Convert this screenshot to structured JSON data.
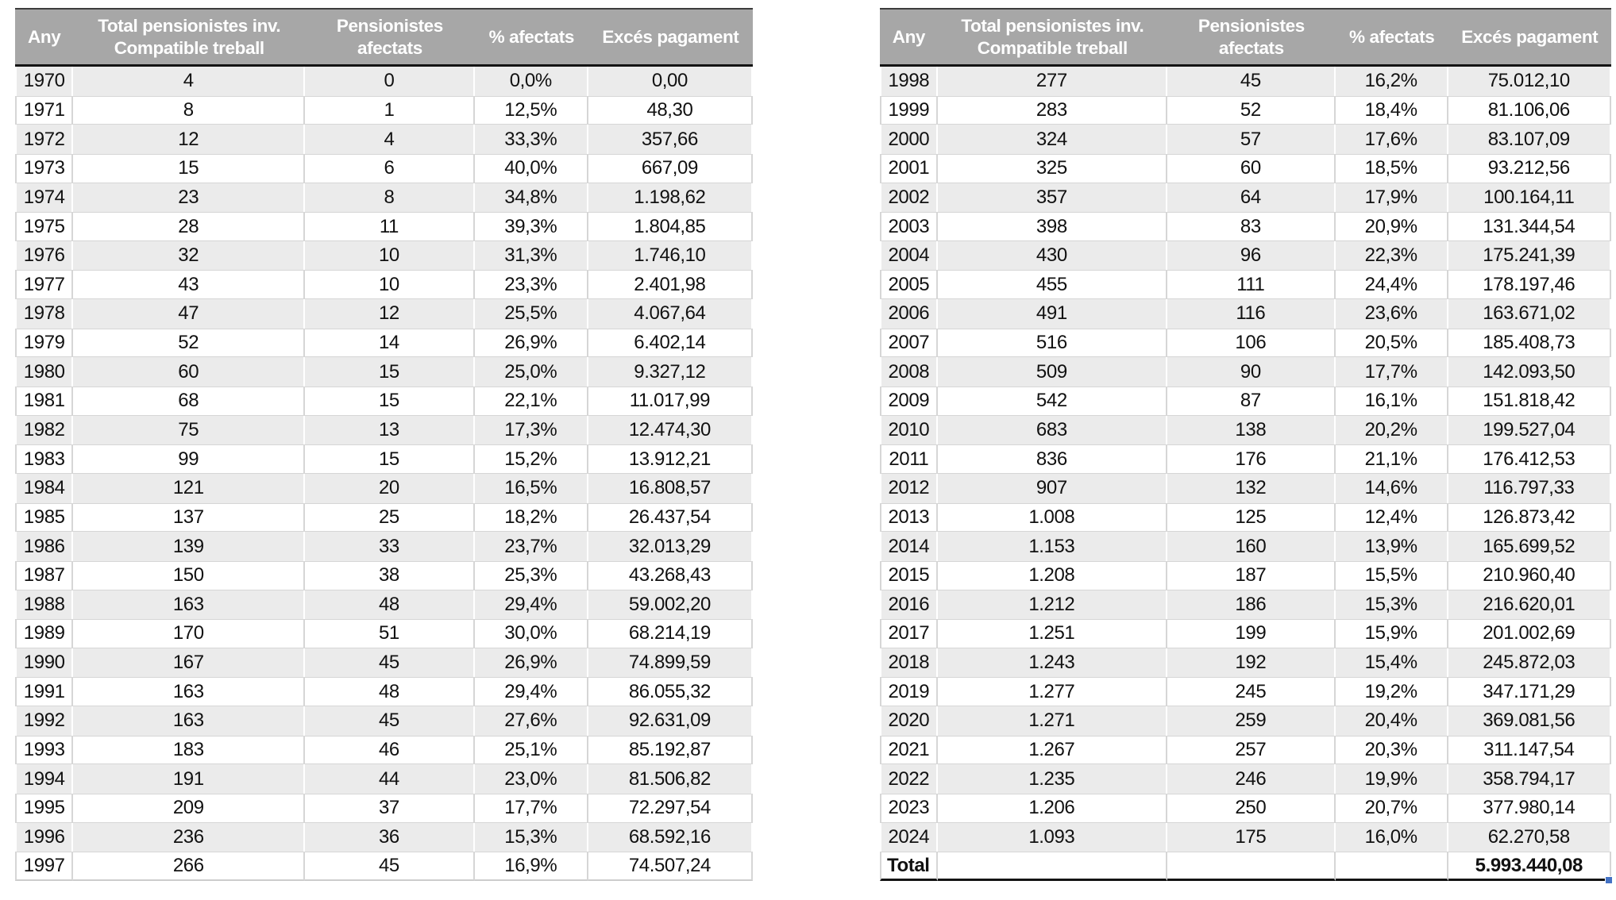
{
  "colors": {
    "header_bg": "#a7a7a7",
    "header_text": "#ffffff",
    "stripe_bg": "#ebebeb",
    "row_bg": "#ffffff",
    "border_dark": "#141414",
    "divider_light": "#d6d6d6",
    "fill_handle_blue": "#4472c4"
  },
  "headers": [
    [
      "Any"
    ],
    [
      "Total pensionistes inv.",
      "Compatible treball"
    ],
    [
      "Pensionistes",
      "afectats"
    ],
    [
      "% afectats"
    ],
    [
      "Excés pagament"
    ]
  ],
  "tables": [
    {
      "name": "pension-table-1970-1997",
      "rows": [
        [
          "1970",
          "4",
          "0",
          "0,0%",
          "0,00"
        ],
        [
          "1971",
          "8",
          "1",
          "12,5%",
          "48,30"
        ],
        [
          "1972",
          "12",
          "4",
          "33,3%",
          "357,66"
        ],
        [
          "1973",
          "15",
          "6",
          "40,0%",
          "667,09"
        ],
        [
          "1974",
          "23",
          "8",
          "34,8%",
          "1.198,62"
        ],
        [
          "1975",
          "28",
          "11",
          "39,3%",
          "1.804,85"
        ],
        [
          "1976",
          "32",
          "10",
          "31,3%",
          "1.746,10"
        ],
        [
          "1977",
          "43",
          "10",
          "23,3%",
          "2.401,98"
        ],
        [
          "1978",
          "47",
          "12",
          "25,5%",
          "4.067,64"
        ],
        [
          "1979",
          "52",
          "14",
          "26,9%",
          "6.402,14"
        ],
        [
          "1980",
          "60",
          "15",
          "25,0%",
          "9.327,12"
        ],
        [
          "1981",
          "68",
          "15",
          "22,1%",
          "11.017,99"
        ],
        [
          "1982",
          "75",
          "13",
          "17,3%",
          "12.474,30"
        ],
        [
          "1983",
          "99",
          "15",
          "15,2%",
          "13.912,21"
        ],
        [
          "1984",
          "121",
          "20",
          "16,5%",
          "16.808,57"
        ],
        [
          "1985",
          "137",
          "25",
          "18,2%",
          "26.437,54"
        ],
        [
          "1986",
          "139",
          "33",
          "23,7%",
          "32.013,29"
        ],
        [
          "1987",
          "150",
          "38",
          "25,3%",
          "43.268,43"
        ],
        [
          "1988",
          "163",
          "48",
          "29,4%",
          "59.002,20"
        ],
        [
          "1989",
          "170",
          "51",
          "30,0%",
          "68.214,19"
        ],
        [
          "1990",
          "167",
          "45",
          "26,9%",
          "74.899,59"
        ],
        [
          "1991",
          "163",
          "48",
          "29,4%",
          "86.055,32"
        ],
        [
          "1992",
          "163",
          "45",
          "27,6%",
          "92.631,09"
        ],
        [
          "1993",
          "183",
          "46",
          "25,1%",
          "85.192,87"
        ],
        [
          "1994",
          "191",
          "44",
          "23,0%",
          "81.506,82"
        ],
        [
          "1995",
          "209",
          "37",
          "17,7%",
          "72.297,54"
        ],
        [
          "1996",
          "236",
          "36",
          "15,3%",
          "68.592,16"
        ],
        [
          "1997",
          "266",
          "45",
          "16,9%",
          "74.507,24"
        ]
      ]
    },
    {
      "name": "pension-table-1998-2024",
      "rows": [
        [
          "1998",
          "277",
          "45",
          "16,2%",
          "75.012,10"
        ],
        [
          "1999",
          "283",
          "52",
          "18,4%",
          "81.106,06"
        ],
        [
          "2000",
          "324",
          "57",
          "17,6%",
          "83.107,09"
        ],
        [
          "2001",
          "325",
          "60",
          "18,5%",
          "93.212,56"
        ],
        [
          "2002",
          "357",
          "64",
          "17,9%",
          "100.164,11"
        ],
        [
          "2003",
          "398",
          "83",
          "20,9%",
          "131.344,54"
        ],
        [
          "2004",
          "430",
          "96",
          "22,3%",
          "175.241,39"
        ],
        [
          "2005",
          "455",
          "111",
          "24,4%",
          "178.197,46"
        ],
        [
          "2006",
          "491",
          "116",
          "23,6%",
          "163.671,02"
        ],
        [
          "2007",
          "516",
          "106",
          "20,5%",
          "185.408,73"
        ],
        [
          "2008",
          "509",
          "90",
          "17,7%",
          "142.093,50"
        ],
        [
          "2009",
          "542",
          "87",
          "16,1%",
          "151.818,42"
        ],
        [
          "2010",
          "683",
          "138",
          "20,2%",
          "199.527,04"
        ],
        [
          "2011",
          "836",
          "176",
          "21,1%",
          "176.412,53"
        ],
        [
          "2012",
          "907",
          "132",
          "14,6%",
          "116.797,33"
        ],
        [
          "2013",
          "1.008",
          "125",
          "12,4%",
          "126.873,42"
        ],
        [
          "2014",
          "1.153",
          "160",
          "13,9%",
          "165.699,52"
        ],
        [
          "2015",
          "1.208",
          "187",
          "15,5%",
          "210.960,40"
        ],
        [
          "2016",
          "1.212",
          "186",
          "15,3%",
          "216.620,01"
        ],
        [
          "2017",
          "1.251",
          "199",
          "15,9%",
          "201.002,69"
        ],
        [
          "2018",
          "1.243",
          "192",
          "15,4%",
          "245.872,03"
        ],
        [
          "2019",
          "1.277",
          "245",
          "19,2%",
          "347.171,29"
        ],
        [
          "2020",
          "1.271",
          "259",
          "20,4%",
          "369.081,56"
        ],
        [
          "2021",
          "1.267",
          "257",
          "20,3%",
          "311.147,54"
        ],
        [
          "2022",
          "1.235",
          "246",
          "19,9%",
          "358.794,17"
        ],
        [
          "2023",
          "1.206",
          "250",
          "20,7%",
          "377.980,14"
        ],
        [
          "2024",
          "1.093",
          "175",
          "16,0%",
          "62.270,58"
        ]
      ],
      "total_row": {
        "label": "Total",
        "value": "5.993.440,08"
      }
    }
  ]
}
